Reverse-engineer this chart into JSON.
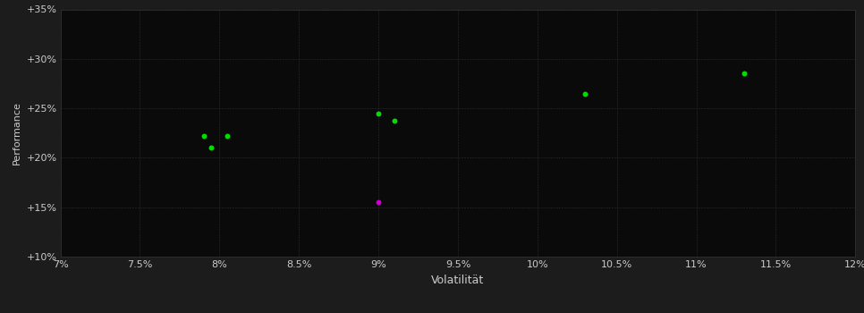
{
  "background_color": "#1c1c1c",
  "plot_bg_color": "#0a0a0a",
  "grid_color": "#2d2d2d",
  "text_color": "#cccccc",
  "xlabel": "Volatilität",
  "ylabel": "Performance",
  "xlim": [
    0.07,
    0.12
  ],
  "ylim": [
    0.1,
    0.35
  ],
  "xticks": [
    0.07,
    0.075,
    0.08,
    0.085,
    0.09,
    0.095,
    0.1,
    0.105,
    0.11,
    0.115,
    0.12
  ],
  "yticks": [
    0.1,
    0.15,
    0.2,
    0.25,
    0.3,
    0.35
  ],
  "green_points": [
    [
      0.079,
      0.222
    ],
    [
      0.0805,
      0.222
    ],
    [
      0.0795,
      0.21
    ],
    [
      0.09,
      0.245
    ],
    [
      0.091,
      0.237
    ],
    [
      0.103,
      0.265
    ],
    [
      0.113,
      0.285
    ]
  ],
  "magenta_points": [
    [
      0.09,
      0.155
    ]
  ],
  "green_color": "#00dd00",
  "magenta_color": "#cc00cc",
  "point_size": 18,
  "marker": "o",
  "grid_linewidth": 0.4,
  "grid_linestyle": "--",
  "spine_color": "#333333",
  "tick_labelsize": 8,
  "label_fontsize": 9,
  "ylabel_fontsize": 8
}
